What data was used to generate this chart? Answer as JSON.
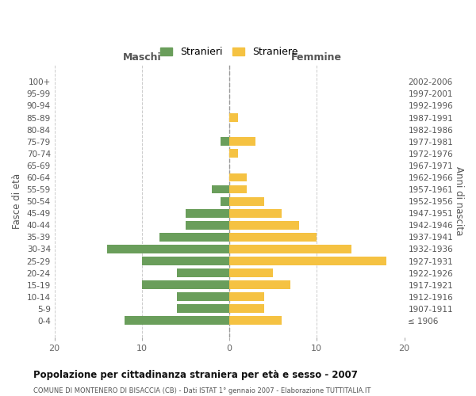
{
  "age_groups": [
    "100+",
    "95-99",
    "90-94",
    "85-89",
    "80-84",
    "75-79",
    "70-74",
    "65-69",
    "60-64",
    "55-59",
    "50-54",
    "45-49",
    "40-44",
    "35-39",
    "30-34",
    "25-29",
    "20-24",
    "15-19",
    "10-14",
    "5-9",
    "0-4"
  ],
  "birth_years": [
    "≤ 1906",
    "1907-1911",
    "1912-1916",
    "1917-1921",
    "1922-1926",
    "1927-1931",
    "1932-1936",
    "1937-1941",
    "1942-1946",
    "1947-1951",
    "1952-1956",
    "1957-1961",
    "1962-1966",
    "1967-1971",
    "1972-1976",
    "1977-1981",
    "1982-1986",
    "1987-1991",
    "1992-1996",
    "1997-2001",
    "2002-2006"
  ],
  "maschi": [
    0,
    0,
    0,
    0,
    0,
    1,
    0,
    0,
    0,
    2,
    1,
    5,
    5,
    8,
    14,
    10,
    6,
    10,
    6,
    6,
    12
  ],
  "femmine": [
    0,
    0,
    0,
    1,
    0,
    3,
    1,
    0,
    2,
    2,
    4,
    6,
    8,
    10,
    14,
    18,
    5,
    7,
    4,
    4,
    6
  ],
  "color_maschi": "#6a9e5b",
  "color_femmine": "#f5c242",
  "title": "Popolazione per cittadinanza straniera per età e sesso - 2007",
  "subtitle": "COMUNE DI MONTENERO DI BISACCIA (CB) - Dati ISTAT 1° gennaio 2007 - Elaborazione TUTTITALIA.IT",
  "ylabel_left": "Fasce di età",
  "ylabel_right": "Anni di nascita",
  "xlabel_left": "Maschi",
  "xlabel_right": "Femmine",
  "legend_maschi": "Stranieri",
  "legend_femmine": "Straniere",
  "xlim": 20,
  "background_color": "#ffffff",
  "grid_color": "#cccccc"
}
